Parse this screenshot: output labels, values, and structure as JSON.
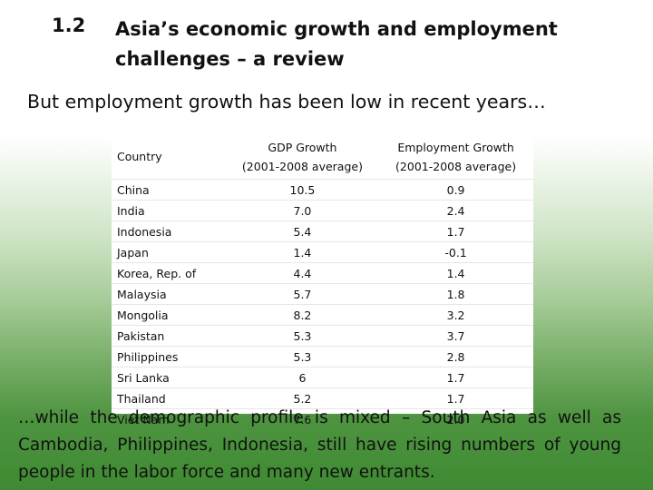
{
  "slide": {
    "section_number": "1.2",
    "section_title": "Asia’s economic growth and employment challenges – a review",
    "subtitle": "But employment growth has been low in recent years…",
    "bottom_text": "…while the demographic profile is mixed – South Asia as well as Cambodia, Philippines, Indonesia, still have rising numbers of young people in the labor force and many new entrants."
  },
  "table": {
    "headers": {
      "country": "Country",
      "gdp_line1": "GDP Growth",
      "gdp_line2": "(2001-2008 average)",
      "emp_line1": "Employment Growth",
      "emp_line2": "(2001-2008 average)"
    },
    "rows": [
      {
        "country": "China",
        "gdp": "10.5",
        "emp": "0.9"
      },
      {
        "country": "India",
        "gdp": "7.0",
        "emp": "2.4"
      },
      {
        "country": "Indonesia",
        "gdp": "5.4",
        "emp": "1.7"
      },
      {
        "country": "Japan",
        "gdp": "1.4",
        "emp": "-0.1"
      },
      {
        "country": "Korea, Rep. of",
        "gdp": "4.4",
        "emp": "1.4"
      },
      {
        "country": "Malaysia",
        "gdp": "5.7",
        "emp": "1.8"
      },
      {
        "country": "Mongolia",
        "gdp": "8.2",
        "emp": "3.2"
      },
      {
        "country": "Pakistan",
        "gdp": "5.3",
        "emp": "3.7"
      },
      {
        "country": "Philippines",
        "gdp": "5.3",
        "emp": "2.8"
      },
      {
        "country": "Sri Lanka",
        "gdp": "6",
        "emp": "1.7"
      },
      {
        "country": "Thailand",
        "gdp": "5.2",
        "emp": "1.7"
      },
      {
        "country": "Viet Nam",
        "gdp": "7.6",
        "emp": "2.0"
      }
    ]
  }
}
